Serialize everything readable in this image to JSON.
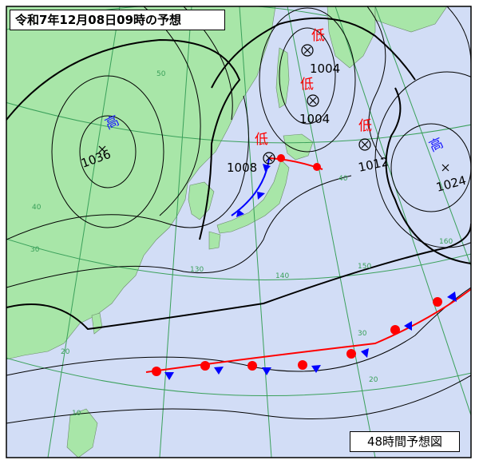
{
  "title": "令和7年12月08日09時の予想",
  "caption": "48時間予想図",
  "pressure_systems": [
    {
      "type": "high",
      "label": "高",
      "pressure": "1036",
      "color": "#1a1aff"
    },
    {
      "type": "low",
      "label": "低",
      "pressure": "1004",
      "color": "#ff0000"
    },
    {
      "type": "low",
      "label": "低",
      "pressure": "1004",
      "color": "#ff0000"
    },
    {
      "type": "low",
      "label": "低",
      "pressure": "1008",
      "color": "#ff0000"
    },
    {
      "type": "low",
      "label": "低",
      "pressure": "1012",
      "color": "#ff0000"
    },
    {
      "type": "high",
      "label": "高",
      "pressure": "1024",
      "color": "#1a1aff"
    }
  ],
  "grid_labels": [
    "50",
    "40",
    "30",
    "20",
    "10",
    "140",
    "150",
    "160",
    "40",
    "30",
    "20",
    "130"
  ],
  "colors": {
    "sea": "#d2ddf6",
    "land": "#a8e6a8",
    "isobar": "#000000",
    "grid": "#3aa05a",
    "warm_front": "#ff0000",
    "cold_front": "#0000ff"
  },
  "fronts": [
    "warm",
    "cold",
    "stationary"
  ]
}
